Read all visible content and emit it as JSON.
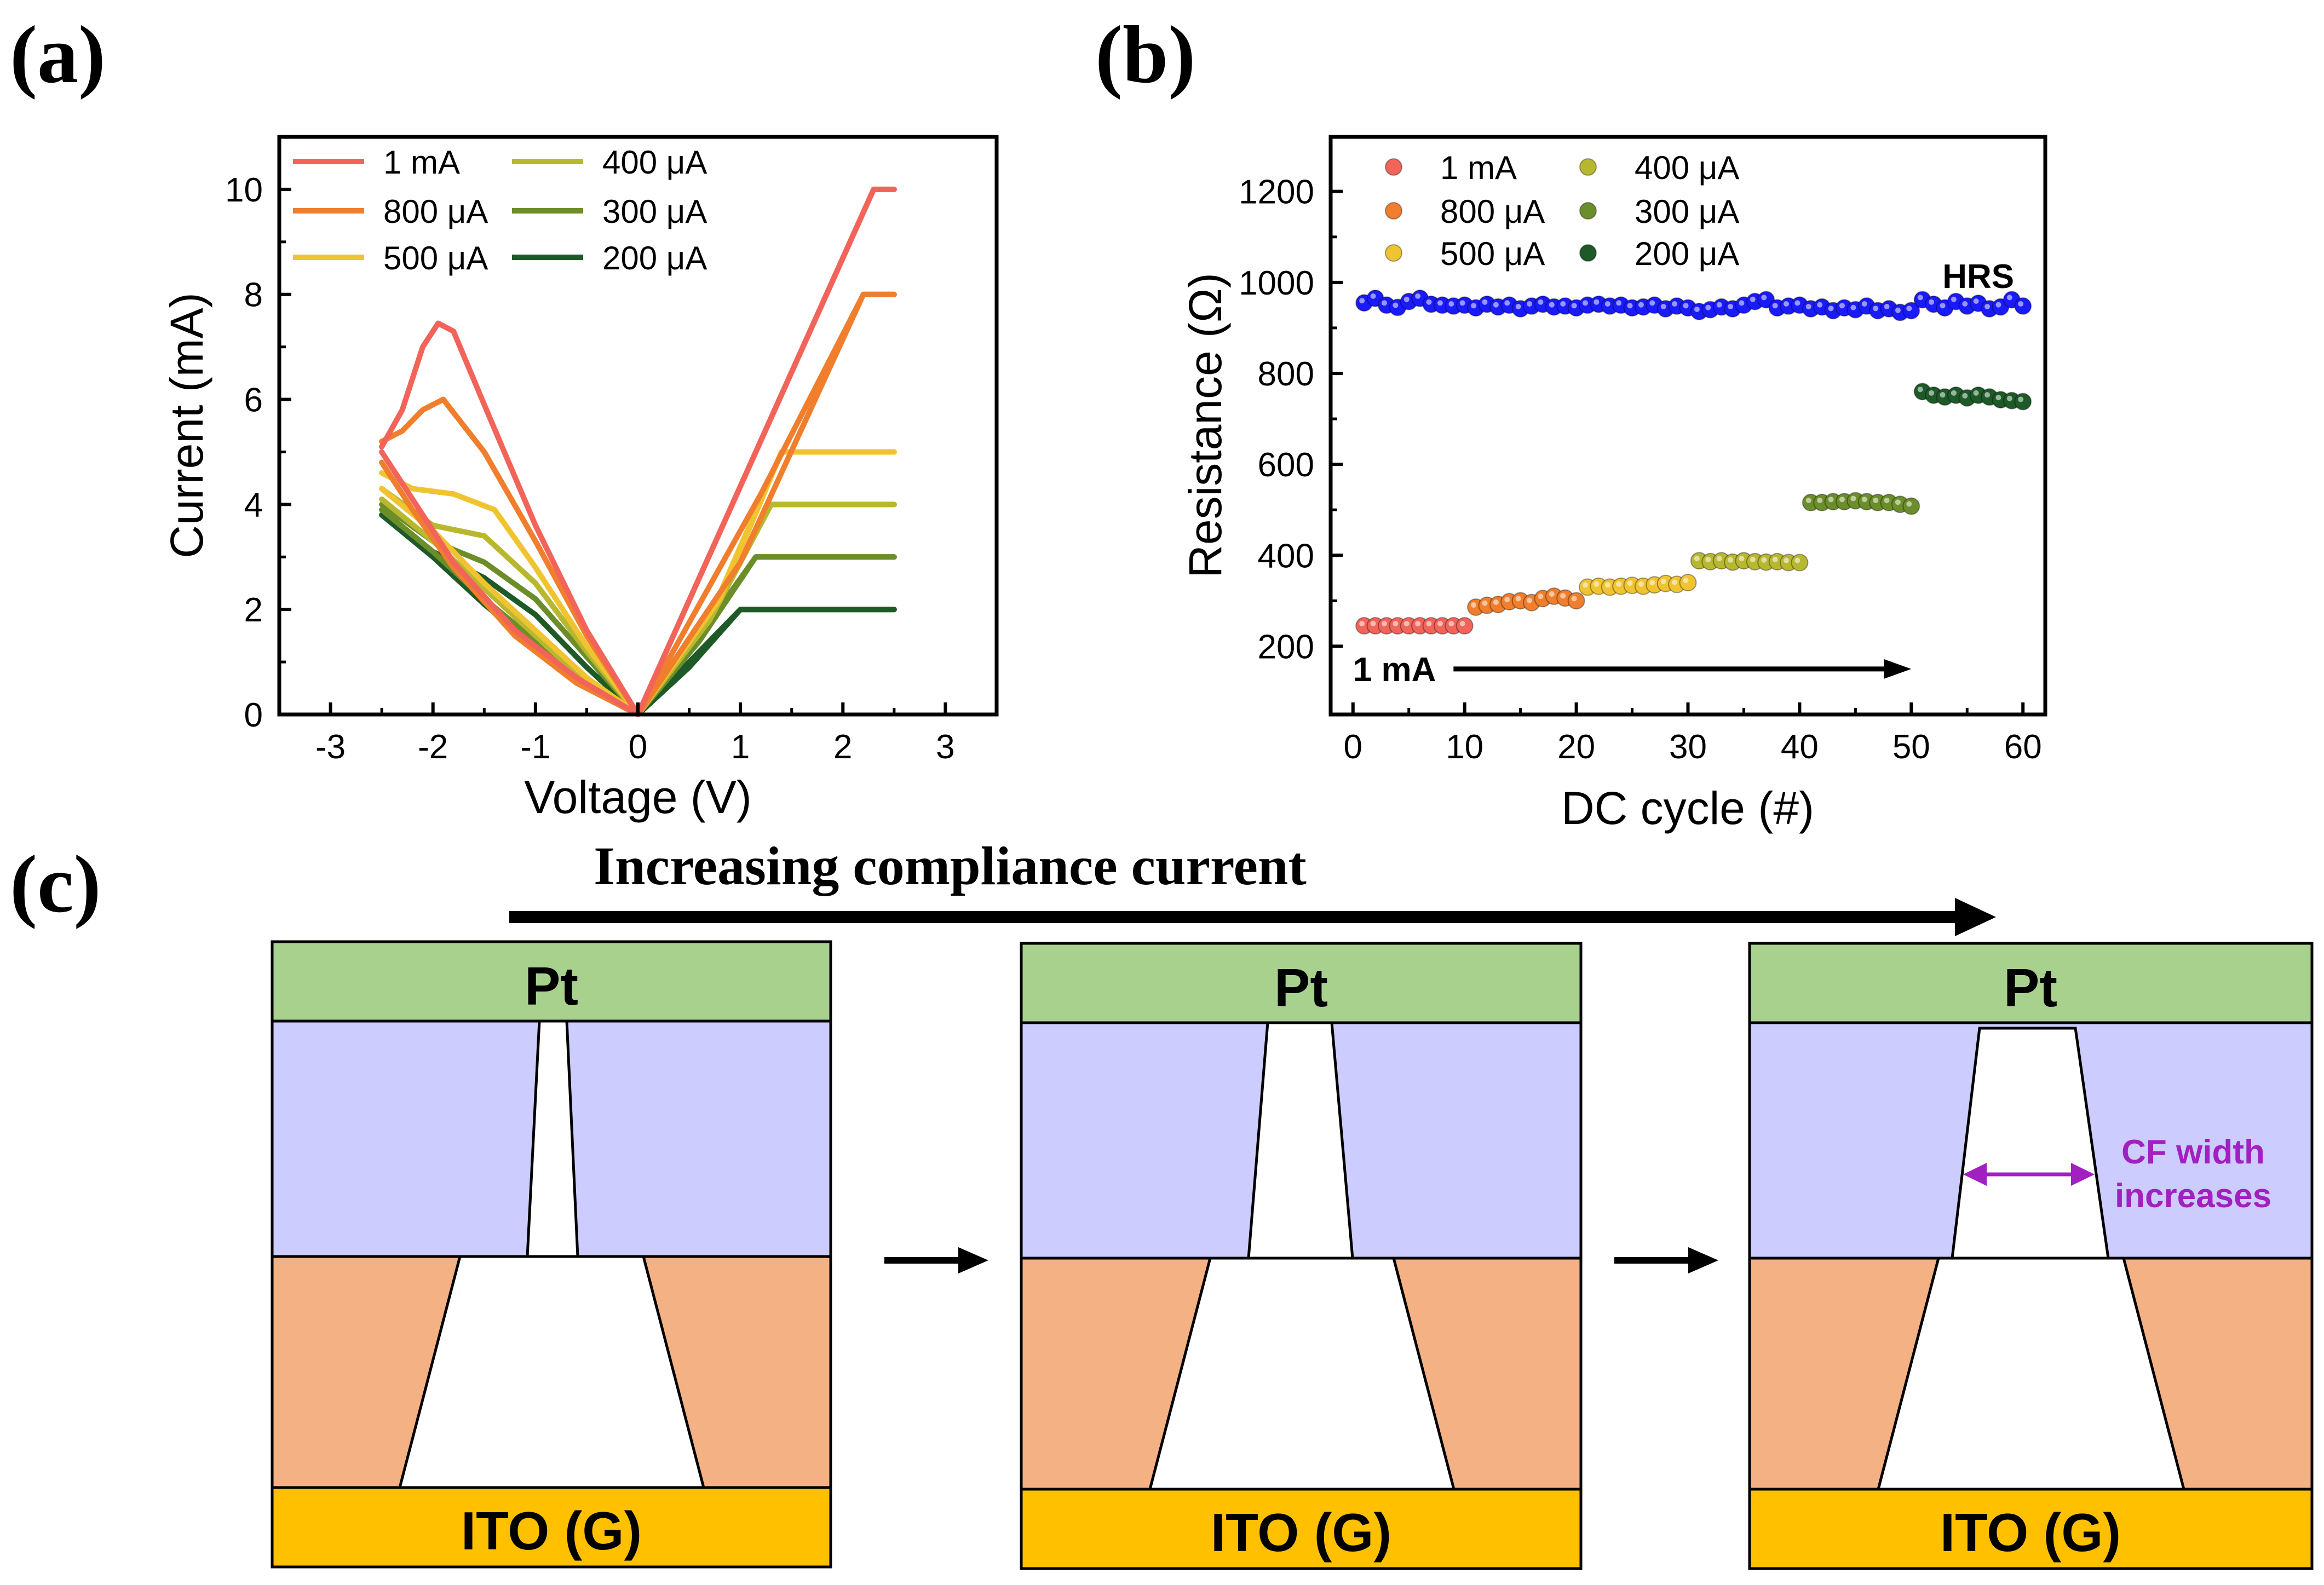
{
  "panels": {
    "a_label": "(a)",
    "b_label": "(b)",
    "c_label": "(c)"
  },
  "colors": {
    "c1mA": "#f2645a",
    "c800": "#f07e2c",
    "c500": "#f0c430",
    "c400": "#b8b830",
    "c300": "#6b8e2a",
    "c200": "#1e5a28",
    "hrs": "#1a1aff",
    "pt": "#a9d18e",
    "oxide": "#ccccff",
    "bottom": "#f4b183",
    "ito": "#ffc000",
    "cf_arrow": "#a020c0"
  },
  "chart_data": [
    {
      "type": "line",
      "title": "",
      "xlabel": "Voltage (V)",
      "ylabel": "Current (mA)",
      "xlim": [
        -3.5,
        3.5
      ],
      "ylim": [
        0,
        11
      ],
      "xticks": [
        -3,
        -2,
        -1,
        0,
        1,
        2,
        3
      ],
      "xtick_labels": [
        "-3",
        "-2",
        "-1",
        "0",
        "1",
        "2",
        "3"
      ],
      "yticks": [
        0,
        2,
        4,
        6,
        8,
        10
      ],
      "ytick_labels": [
        "0",
        "2",
        "4",
        "6",
        "8",
        "10"
      ],
      "legend_position": "top-left",
      "series": [
        {
          "name": "1 mA",
          "key": "c1mA",
          "compliance": 10,
          "set_v": 2.3,
          "forward": [
            [
              0,
              0
            ],
            [
              2.3,
              10
            ],
            [
              2.5,
              10
            ]
          ],
          "return": [
            [
              2.5,
              10
            ],
            [
              2.3,
              10
            ],
            [
              0,
              0
            ]
          ],
          "negative": [
            [
              0,
              0
            ],
            [
              -0.5,
              1.6
            ],
            [
              -1.0,
              3.6
            ],
            [
              -1.5,
              5.9
            ],
            [
              -1.8,
              7.3
            ],
            [
              -1.95,
              7.45
            ],
            [
              -2.1,
              7.0
            ],
            [
              -2.3,
              5.8
            ],
            [
              -2.5,
              5.1
            ]
          ],
          "negative_return": [
            [
              -2.5,
              5.0
            ],
            [
              -2.2,
              4.1
            ],
            [
              -1.8,
              2.9
            ],
            [
              -1.2,
              1.6
            ],
            [
              -0.6,
              0.7
            ],
            [
              0,
              0
            ]
          ]
        },
        {
          "name": "800 μA",
          "key": "c800",
          "compliance": 8,
          "set_v": 2.2,
          "forward": [
            [
              0,
              0
            ],
            [
              1.0,
              2.9
            ],
            [
              2.2,
              8
            ],
            [
              2.5,
              8
            ]
          ],
          "return": [
            [
              2.5,
              8
            ],
            [
              2.2,
              8
            ],
            [
              1.2,
              4.2
            ],
            [
              0,
              0
            ]
          ],
          "negative": [
            [
              0,
              0
            ],
            [
              -0.5,
              1.5
            ],
            [
              -1.0,
              3.3
            ],
            [
              -1.5,
              5.0
            ],
            [
              -1.9,
              6.0
            ],
            [
              -2.1,
              5.8
            ],
            [
              -2.3,
              5.4
            ],
            [
              -2.5,
              5.2
            ]
          ],
          "negative_return": [
            [
              -2.5,
              4.8
            ],
            [
              -2.2,
              3.9
            ],
            [
              -1.8,
              2.8
            ],
            [
              -1.2,
              1.5
            ],
            [
              -0.6,
              0.6
            ],
            [
              0,
              0
            ]
          ]
        },
        {
          "name": "500 μA",
          "key": "c500",
          "compliance": 5,
          "set_v": 1.4,
          "forward": [
            [
              0,
              0
            ],
            [
              0.8,
              2.2
            ],
            [
              1.4,
              5
            ],
            [
              2.5,
              5
            ]
          ],
          "return": [
            [
              2.5,
              5
            ],
            [
              1.4,
              5
            ],
            [
              0.8,
              2.3
            ],
            [
              0,
              0
            ]
          ],
          "negative": [
            [
              0,
              0
            ],
            [
              -0.5,
              1.3
            ],
            [
              -1.0,
              2.8
            ],
            [
              -1.4,
              3.9
            ],
            [
              -1.8,
              4.2
            ],
            [
              -2.2,
              4.3
            ],
            [
              -2.5,
              4.6
            ]
          ],
          "negative_return": [
            [
              -2.5,
              4.3
            ],
            [
              -2.0,
              3.5
            ],
            [
              -1.5,
              2.5
            ],
            [
              -1.0,
              1.6
            ],
            [
              -0.5,
              0.7
            ],
            [
              0,
              0
            ]
          ]
        },
        {
          "name": "400 μA",
          "key": "c400",
          "compliance": 4,
          "set_v": 1.3,
          "forward": [
            [
              0,
              0
            ],
            [
              0.7,
              1.8
            ],
            [
              1.3,
              4
            ],
            [
              2.5,
              4
            ]
          ],
          "return": [
            [
              2.5,
              4
            ],
            [
              1.3,
              4
            ],
            [
              0.7,
              1.9
            ],
            [
              0,
              0
            ]
          ],
          "negative": [
            [
              0,
              0
            ],
            [
              -0.5,
              1.2
            ],
            [
              -1.0,
              2.5
            ],
            [
              -1.5,
              3.4
            ],
            [
              -2.0,
              3.6
            ],
            [
              -2.5,
              4.3
            ]
          ],
          "negative_return": [
            [
              -2.5,
              4.1
            ],
            [
              -2.0,
              3.3
            ],
            [
              -1.5,
              2.4
            ],
            [
              -1.0,
              1.5
            ],
            [
              -0.5,
              0.6
            ],
            [
              0,
              0
            ]
          ]
        },
        {
          "name": "300 μA",
          "key": "c300",
          "compliance": 3,
          "set_v": 1.15,
          "forward": [
            [
              0,
              0
            ],
            [
              0.6,
              1.4
            ],
            [
              1.15,
              3
            ],
            [
              2.5,
              3
            ]
          ],
          "return": [
            [
              2.5,
              3
            ],
            [
              1.15,
              3
            ],
            [
              0.6,
              1.5
            ],
            [
              0,
              0
            ]
          ],
          "negative": [
            [
              0,
              0
            ],
            [
              -0.5,
              1.1
            ],
            [
              -1.0,
              2.2
            ],
            [
              -1.5,
              2.9
            ],
            [
              -2.0,
              3.3
            ],
            [
              -2.5,
              4.0
            ]
          ],
          "negative_return": [
            [
              -2.5,
              3.9
            ],
            [
              -2.0,
              3.1
            ],
            [
              -1.5,
              2.2
            ],
            [
              -1.0,
              1.4
            ],
            [
              -0.5,
              0.6
            ],
            [
              0,
              0
            ]
          ]
        },
        {
          "name": "200 μA",
          "key": "c200",
          "compliance": 2,
          "set_v": 1.0,
          "forward": [
            [
              0,
              0
            ],
            [
              0.5,
              0.9
            ],
            [
              1.0,
              2
            ],
            [
              2.5,
              2
            ]
          ],
          "return": [
            [
              2.5,
              2
            ],
            [
              1.0,
              2
            ],
            [
              0.5,
              1.0
            ],
            [
              0,
              0
            ]
          ],
          "negative": [
            [
              0,
              0
            ],
            [
              -0.5,
              0.9
            ],
            [
              -1.0,
              1.9
            ],
            [
              -1.5,
              2.6
            ],
            [
              -2.0,
              3.1
            ],
            [
              -2.5,
              3.9
            ]
          ],
          "negative_return": [
            [
              -2.5,
              3.8
            ],
            [
              -2.0,
              3.0
            ],
            [
              -1.5,
              2.1
            ],
            [
              -1.0,
              1.3
            ],
            [
              -0.5,
              0.5
            ],
            [
              0,
              0
            ]
          ]
        }
      ]
    },
    {
      "type": "scatter",
      "title": "",
      "xlabel": "DC cycle (#)",
      "ylabel": "Resistance (Ω)",
      "xlim": [
        -2,
        62
      ],
      "ylim": [
        50,
        1320
      ],
      "xticks": [
        0,
        10,
        20,
        30,
        40,
        50,
        60
      ],
      "xtick_labels": [
        "0",
        "10",
        "20",
        "30",
        "40",
        "50",
        "60"
      ],
      "yticks": [
        200,
        400,
        600,
        800,
        1000,
        1200
      ],
      "ytick_labels": [
        "200",
        "400",
        "600",
        "800",
        "1000",
        "1200"
      ],
      "legend_position": "top-left",
      "annotations": {
        "hrs_label": "HRS",
        "start_label": "1 mA",
        "arrow_from_cycle": 9,
        "arrow_to_cycle": 50,
        "arrow_level": 150
      },
      "hrs_series": {
        "name": "HRS",
        "cycles": [
          1,
          2,
          3,
          4,
          5,
          6,
          7,
          8,
          9,
          10,
          11,
          12,
          13,
          14,
          15,
          16,
          17,
          18,
          19,
          20,
          21,
          22,
          23,
          24,
          25,
          26,
          27,
          28,
          29,
          30,
          31,
          32,
          33,
          34,
          35,
          36,
          37,
          38,
          39,
          40,
          41,
          42,
          43,
          44,
          45,
          46,
          47,
          48,
          49,
          50,
          51,
          52,
          53,
          54,
          55,
          56,
          57,
          58,
          59,
          60
        ],
        "values": [
          955,
          965,
          950,
          945,
          958,
          965,
          952,
          950,
          948,
          950,
          944,
          952,
          946,
          950,
          942,
          948,
          952,
          946,
          948,
          944,
          950,
          952,
          948,
          950,
          944,
          946,
          950,
          942,
          948,
          944,
          936,
          940,
          946,
          942,
          950,
          958,
          962,
          944,
          948,
          950,
          942,
          946,
          938,
          944,
          940,
          948,
          938,
          942,
          934,
          938,
          962,
          952,
          944,
          958,
          948,
          954,
          942,
          946,
          962,
          948
        ]
      },
      "series": [
        {
          "name": "1 mA",
          "key": "c1mA",
          "cycles": [
            1,
            2,
            3,
            4,
            5,
            6,
            7,
            8,
            9,
            10
          ],
          "values": [
            245,
            245,
            245,
            245,
            245,
            245,
            245,
            245,
            245,
            245
          ]
        },
        {
          "name": "800 μA",
          "key": "c800",
          "cycles": [
            11,
            12,
            13,
            14,
            15,
            16,
            17,
            18,
            19,
            20
          ],
          "values": [
            286,
            290,
            292,
            298,
            300,
            296,
            305,
            310,
            306,
            300
          ]
        },
        {
          "name": "500 μA",
          "key": "c500",
          "cycles": [
            21,
            22,
            23,
            24,
            25,
            26,
            27,
            28,
            29,
            30
          ],
          "values": [
            330,
            332,
            330,
            332,
            334,
            332,
            335,
            338,
            336,
            340
          ]
        },
        {
          "name": "400 μA",
          "key": "c400",
          "cycles": [
            31,
            32,
            33,
            34,
            35,
            36,
            37,
            38,
            39,
            40
          ],
          "values": [
            388,
            386,
            388,
            385,
            388,
            386,
            385,
            386,
            384,
            384
          ]
        },
        {
          "name": "300 μA",
          "key": "c300",
          "cycles": [
            41,
            42,
            43,
            44,
            45,
            46,
            47,
            48,
            49,
            50
          ],
          "values": [
            516,
            516,
            518,
            518,
            520,
            518,
            516,
            516,
            512,
            508
          ]
        },
        {
          "name": "200 μA",
          "key": "c200",
          "cycles": [
            51,
            52,
            53,
            54,
            55,
            56,
            57,
            58,
            59,
            60
          ],
          "values": [
            760,
            752,
            748,
            752,
            746,
            752,
            748,
            742,
            740,
            738
          ]
        }
      ]
    }
  ],
  "schematic": {
    "headline": "Increasing compliance current",
    "top_electrode": "Pt",
    "bottom_electrode": "ITO (G)",
    "cf_annotation_line1": "CF width",
    "cf_annotation_line2": "increases"
  }
}
